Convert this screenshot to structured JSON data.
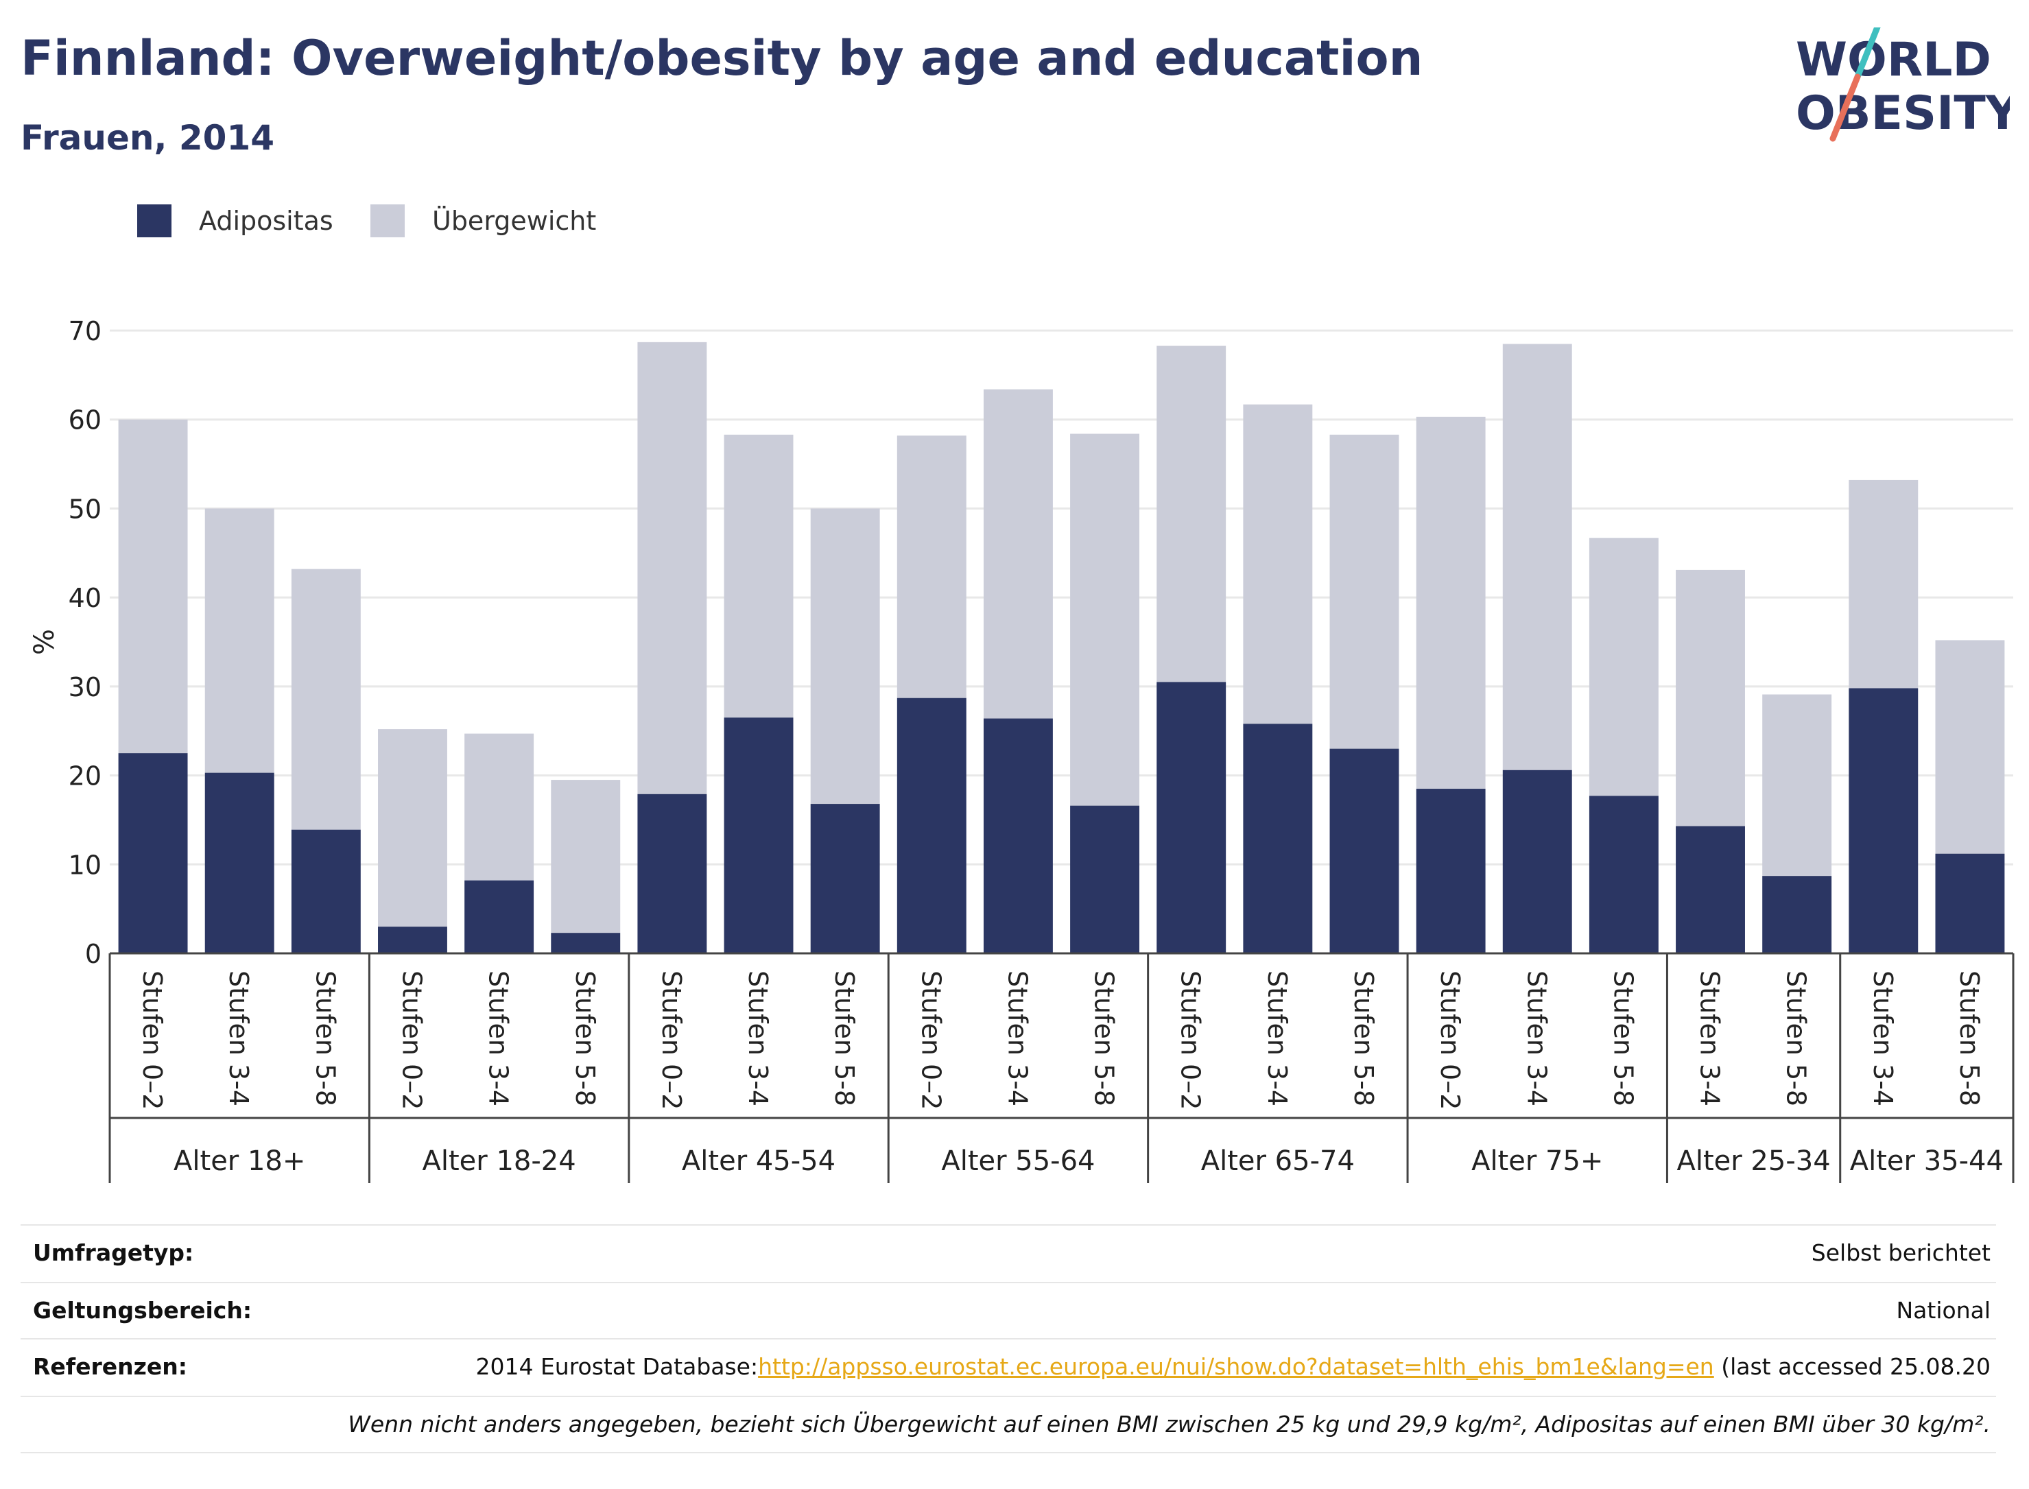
{
  "header": {
    "title": "Finnland: Overweight/obesity by age and education",
    "subtitle": "Frauen, 2014",
    "logo_line1": "WORLD",
    "logo_line2": "OBESITY"
  },
  "colors": {
    "obesity": "#2b3663",
    "overweight": "#cbcdd9",
    "title": "#2b3663",
    "link": "#e6a817",
    "logo_teal": "#3fbfbf",
    "logo_red": "#e8705a"
  },
  "chart_data": {
    "type": "bar",
    "stacked": true,
    "ylabel": "%",
    "ylim": [
      0,
      70
    ],
    "yticks": [
      0,
      10,
      20,
      30,
      40,
      50,
      60,
      70
    ],
    "grid": true,
    "legend_position": "top-left",
    "groups": [
      {
        "label": "Alter 18+",
        "categories": [
          "Stufen 0–2",
          "Stufen 3-4",
          "Stufen 5-8"
        ]
      },
      {
        "label": "Alter 18-24",
        "categories": [
          "Stufen 0–2",
          "Stufen 3-4",
          "Stufen 5-8"
        ]
      },
      {
        "label": "Alter 45-54",
        "categories": [
          "Stufen 0–2",
          "Stufen 3-4",
          "Stufen 5-8"
        ]
      },
      {
        "label": "Alter 55-64",
        "categories": [
          "Stufen 0–2",
          "Stufen 3-4",
          "Stufen 5-8"
        ]
      },
      {
        "label": "Alter 65-74",
        "categories": [
          "Stufen 0–2",
          "Stufen 3-4",
          "Stufen 5-8"
        ]
      },
      {
        "label": "Alter 75+",
        "categories": [
          "Stufen 0–2",
          "Stufen 3-4",
          "Stufen 5-8"
        ]
      },
      {
        "label": "Alter 25-34",
        "categories": [
          "Stufen 3-4",
          "Stufen 5-8"
        ]
      },
      {
        "label": "Alter 35-44",
        "categories": [
          "Stufen 3-4",
          "Stufen 5-8"
        ]
      }
    ],
    "series": [
      {
        "name": "Adipositas",
        "values": [
          22.5,
          20.3,
          13.9,
          3.0,
          8.2,
          2.3,
          17.9,
          26.5,
          16.8,
          28.7,
          26.4,
          16.6,
          30.5,
          25.8,
          23.0,
          18.5,
          20.6,
          17.7,
          14.3,
          8.7,
          29.8,
          11.2
        ]
      },
      {
        "name": "Übergewicht",
        "values": [
          37.5,
          29.7,
          29.3,
          22.2,
          16.5,
          17.2,
          50.8,
          31.8,
          33.2,
          29.5,
          37.0,
          41.8,
          37.8,
          35.9,
          35.3,
          41.8,
          47.9,
          29.0,
          28.8,
          20.4,
          23.4,
          24.0
        ]
      }
    ]
  },
  "legend": {
    "items": [
      {
        "label": "Adipositas"
      },
      {
        "label": "Übergewicht"
      }
    ]
  },
  "meta": {
    "survey_type_key": "Umfragetyp:",
    "survey_type_val": "Selbst berichtet",
    "scope_key": "Geltungsbereich:",
    "scope_val": "National",
    "ref_key": "Referenzen:",
    "ref_prefix": "2014 Eurostat Database:",
    "ref_link": "http://appsso.eurostat.ec.europa.eu/nui/show.do?dataset=hlth_ehis_bm1e&lang=en",
    "ref_suffix": " (last accessed 25.08.20",
    "note": "Wenn nicht anders angegeben, bezieht sich Übergewicht auf einen BMI zwischen 25 kg und 29,9 kg/m², Adipositas auf einen BMI über 30 kg/m²."
  }
}
